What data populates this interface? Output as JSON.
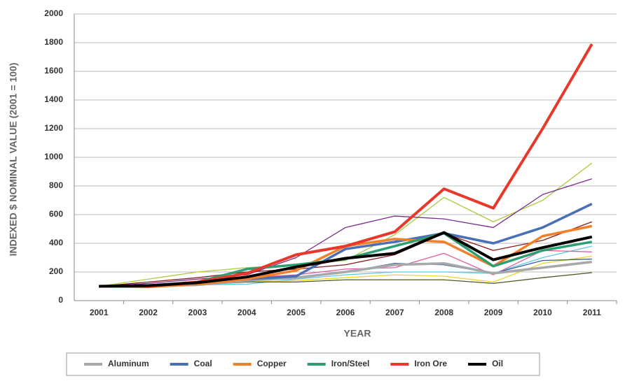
{
  "chart_data": {
    "type": "line",
    "x_label": "YEAR",
    "y_label": "INDEXED $ NOMINAL VALUE (2001 = 100)",
    "categories": [
      "2001",
      "2002",
      "2003",
      "2004",
      "2005",
      "2006",
      "2007",
      "2008",
      "2009",
      "2010",
      "2011"
    ],
    "ylim": [
      0,
      2000
    ],
    "yticks": [
      0,
      200,
      400,
      600,
      800,
      1000,
      1200,
      1400,
      1600,
      1800,
      2000
    ],
    "grid": true,
    "legend": "bottom",
    "series": [
      {
        "name": "Aluminum",
        "color": "#a6a8ab",
        "values": [
          100,
          100,
          110,
          140,
          160,
          200,
          250,
          260,
          190,
          230,
          270
        ]
      },
      {
        "name": "Coal",
        "color": "#4a6fb5",
        "values": [
          100,
          100,
          115,
          150,
          170,
          360,
          410,
          470,
          400,
          510,
          675
        ]
      },
      {
        "name": "Copper",
        "color": "#f0812a",
        "values": [
          100,
          95,
          115,
          150,
          210,
          380,
          430,
          410,
          240,
          450,
          520
        ]
      },
      {
        "name": "Iron/Steel",
        "color": "#2e9e72",
        "values": [
          100,
          105,
          130,
          220,
          250,
          290,
          380,
          470,
          240,
          350,
          410
        ]
      },
      {
        "name": "Iron Ore",
        "color": "#e8372b",
        "values": [
          100,
          100,
          130,
          190,
          320,
          380,
          480,
          780,
          645,
          1200,
          1790
        ]
      },
      {
        "name": "Oil",
        "color": "#000000",
        "values": [
          100,
          105,
          125,
          165,
          235,
          295,
          330,
          475,
          285,
          370,
          445
        ]
      },
      {
        "color": "#a8cc3c",
        "values": [
          100,
          150,
          200,
          230,
          250,
          280,
          460,
          720,
          550,
          700,
          960
        ]
      },
      {
        "color": "#7b2d8b",
        "values": [
          100,
          120,
          150,
          180,
          300,
          510,
          590,
          570,
          510,
          740,
          850
        ]
      },
      {
        "color": "#8b1a1a",
        "values": [
          100,
          130,
          160,
          200,
          220,
          250,
          320,
          470,
          350,
          420,
          550
        ]
      },
      {
        "color": "#5bc8e8",
        "values": [
          100,
          100,
          110,
          115,
          150,
          180,
          200,
          200,
          190,
          300,
          380
        ]
      },
      {
        "color": "#f2d22e",
        "values": [
          100,
          100,
          120,
          130,
          140,
          160,
          180,
          170,
          130,
          260,
          310
        ]
      },
      {
        "color": "#4d5a26",
        "values": [
          100,
          100,
          110,
          130,
          130,
          145,
          145,
          145,
          120,
          160,
          195
        ]
      },
      {
        "color": "#e05ca0",
        "values": [
          100,
          110,
          130,
          160,
          180,
          220,
          230,
          330,
          180,
          350,
          340
        ]
      },
      {
        "color": "#3a5f8f",
        "values": [
          100,
          105,
          120,
          140,
          160,
          200,
          260,
          250,
          190,
          280,
          290
        ]
      }
    ]
  }
}
